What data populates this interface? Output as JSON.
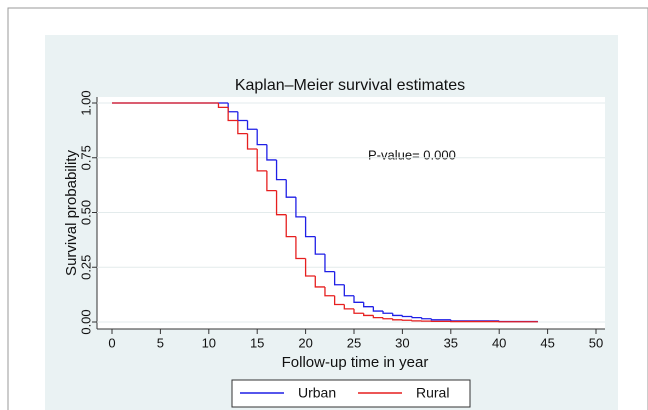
{
  "chart_data": {
    "type": "step",
    "title": "Kaplan–Meier survival estimates",
    "x_label": "Follow-up time in year",
    "y_label": "Survival probability",
    "annotation": "P-value= 0.000",
    "x": [
      0,
      11,
      12,
      13,
      14,
      15,
      16,
      17,
      18,
      19,
      20,
      21,
      22,
      23,
      24,
      25,
      26,
      27,
      28,
      29,
      30,
      31,
      32,
      33,
      35,
      40,
      44
    ],
    "series": [
      {
        "name": "Urban",
        "color": "#1f1fe6",
        "values": [
          1,
          1,
          0.96,
          0.92,
          0.88,
          0.81,
          0.74,
          0.65,
          0.57,
          0.48,
          0.39,
          0.31,
          0.23,
          0.17,
          0.12,
          0.09,
          0.07,
          0.05,
          0.04,
          0.03,
          0.025,
          0.02,
          0.015,
          0.01,
          0.005,
          0.002,
          0.002
        ]
      },
      {
        "name": "Rural",
        "color": "#e61f1f",
        "values": [
          1,
          0.98,
          0.92,
          0.86,
          0.79,
          0.69,
          0.6,
          0.49,
          0.39,
          0.29,
          0.21,
          0.16,
          0.12,
          0.08,
          0.06,
          0.04,
          0.03,
          0.02,
          0.015,
          0.01,
          0.008,
          0.005,
          0.004,
          0.003,
          0.002,
          0.001,
          0.001
        ]
      }
    ],
    "xlim": [
      0,
      50
    ],
    "xticks": [
      0,
      5,
      10,
      15,
      20,
      25,
      30,
      35,
      40,
      45,
      50
    ],
    "ylim": [
      0,
      1
    ],
    "yticks": [
      {
        "value": 0,
        "label": "0.00"
      },
      {
        "value": 0.25,
        "label": "0.25"
      },
      {
        "value": 0.5,
        "label": "0.50"
      },
      {
        "value": 0.75,
        "label": "0.75"
      },
      {
        "value": 1,
        "label": "1.00"
      }
    ],
    "grid": true,
    "legend": "bottom"
  }
}
